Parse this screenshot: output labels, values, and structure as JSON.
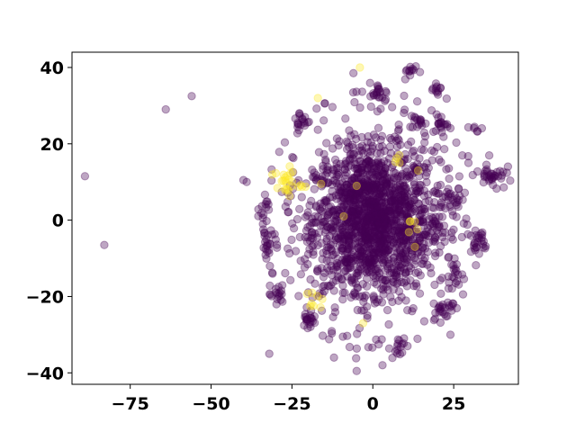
{
  "chart_data": {
    "type": "scatter",
    "title": "",
    "xlabel": "",
    "ylabel": "",
    "xlim": [
      -93,
      45
    ],
    "ylim": [
      -43,
      44
    ],
    "x_ticks": [
      -75,
      -50,
      -25,
      0,
      25
    ],
    "y_ticks": [
      -40,
      -20,
      0,
      20,
      40
    ],
    "x_tick_labels": [
      "−75",
      "−50",
      "−25",
      "0",
      "25"
    ],
    "y_tick_labels": [
      "−40",
      "−20",
      "0",
      "20",
      "40"
    ],
    "grid": false,
    "legend": "none",
    "marker_alpha": 0.35,
    "series": [
      {
        "color": "#440154",
        "clusters": [
          {
            "cx": 0,
            "cy": 0,
            "sx": 9,
            "sy": 9,
            "n": 1100
          },
          {
            "cx": 0,
            "cy": 0,
            "sx": 14,
            "sy": 14,
            "n": 650
          },
          {
            "cx": 2,
            "cy": 33,
            "sx": 1.5,
            "sy": 1.5,
            "n": 22
          },
          {
            "cx": 12,
            "cy": 39,
            "sx": 1.2,
            "sy": 1.0,
            "n": 12
          },
          {
            "cx": 20,
            "cy": 34,
            "sx": 1.0,
            "sy": 1.0,
            "n": 12
          },
          {
            "cx": 14,
            "cy": 26,
            "sx": 1.3,
            "sy": 1.0,
            "n": 16
          },
          {
            "cx": 21,
            "cy": 25,
            "sx": 1.3,
            "sy": 1.2,
            "n": 16
          },
          {
            "cx": -22,
            "cy": 26,
            "sx": 1.3,
            "sy": 1.5,
            "n": 18
          },
          {
            "cx": 37,
            "cy": 12,
            "sx": 2.0,
            "sy": 2.0,
            "n": 35
          },
          {
            "cx": -32,
            "cy": -6,
            "sx": 1.5,
            "sy": 1.5,
            "n": 20
          },
          {
            "cx": -30,
            "cy": -20,
            "sx": 1.3,
            "sy": 1.3,
            "n": 15
          },
          {
            "cx": -20,
            "cy": -26,
            "sx": 1.5,
            "sy": 1.5,
            "n": 20
          },
          {
            "cx": 8,
            "cy": -33,
            "sx": 1.3,
            "sy": 1.3,
            "n": 15
          },
          {
            "cx": 22,
            "cy": -23,
            "sx": 1.5,
            "sy": 1.6,
            "n": 20
          },
          {
            "cx": 25,
            "cy": -14,
            "sx": 1.5,
            "sy": 1.3,
            "n": 18
          },
          {
            "cx": 33,
            "cy": -6,
            "sx": 1.5,
            "sy": 1.5,
            "n": 18
          },
          {
            "cx": 20,
            "cy": -1,
            "sx": 1.5,
            "sy": 1.5,
            "n": 16
          },
          {
            "cx": 24,
            "cy": 6,
            "sx": 1.5,
            "sy": 1.3,
            "n": 14
          },
          {
            "cx": -33,
            "cy": 3,
            "sx": 1.2,
            "sy": 1.2,
            "n": 10
          },
          {
            "cx": 32,
            "cy": 24,
            "sx": 1.0,
            "sy": 1.0,
            "n": 6
          }
        ],
        "points": [
          {
            "x": -89,
            "y": 11.5
          },
          {
            "x": -83,
            "y": -6.5
          },
          {
            "x": -64,
            "y": 29
          },
          {
            "x": -56,
            "y": 32.5
          },
          {
            "x": -39,
            "y": 10
          },
          {
            "x": -40,
            "y": 10.5
          },
          {
            "x": -32,
            "y": -35
          },
          {
            "x": -12,
            "y": -36
          },
          {
            "x": -6,
            "y": 38.5
          },
          {
            "x": -5,
            "y": -39.5
          },
          {
            "x": 3,
            "y": -38
          },
          {
            "x": 24,
            "y": -30
          }
        ]
      },
      {
        "color": "#fde725",
        "clusters": [
          {
            "cx": -27,
            "cy": 10,
            "sx": 2.5,
            "sy": 2.0,
            "n": 25
          },
          {
            "cx": -18,
            "cy": -21,
            "sx": 1.3,
            "sy": 1.3,
            "n": 8
          },
          {
            "cx": 12,
            "cy": -2,
            "sx": 1.0,
            "sy": 1.0,
            "n": 5
          },
          {
            "cx": 8,
            "cy": 16,
            "sx": 1.0,
            "sy": 1.0,
            "n": 4
          }
        ],
        "points": [
          {
            "x": -4,
            "y": 40
          },
          {
            "x": -17,
            "y": 32
          },
          {
            "x": -16,
            "y": 9.5
          },
          {
            "x": -3,
            "y": -27
          },
          {
            "x": -9,
            "y": 1
          },
          {
            "x": 13,
            "y": -7
          },
          {
            "x": -5,
            "y": 9
          },
          {
            "x": 14,
            "y": 13
          }
        ]
      }
    ]
  }
}
